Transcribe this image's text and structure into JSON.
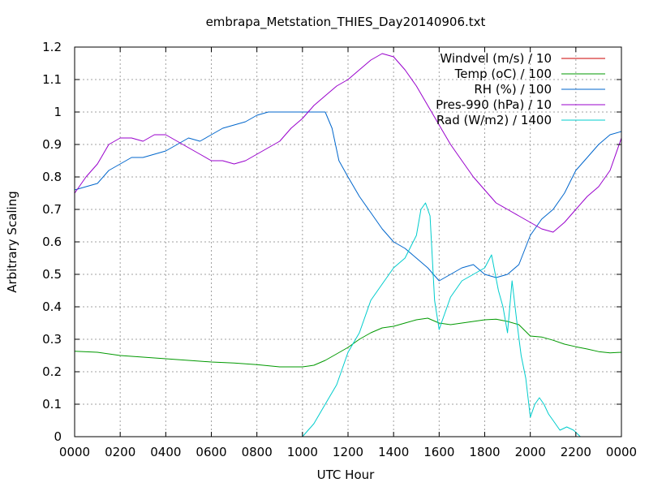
{
  "chart_data": {
    "type": "line",
    "title": "embrapa_Metstation_THIES_Day20140906.txt",
    "xlabel": "UTC Hour",
    "ylabel": "Arbitrary Scaling",
    "xlim": [
      0,
      24
    ],
    "ylim": [
      0,
      1.2
    ],
    "grid": true,
    "legend_position": "top-right",
    "x_ticks": [
      {
        "value": 0,
        "label": "0000"
      },
      {
        "value": 2,
        "label": "0200"
      },
      {
        "value": 4,
        "label": "0400"
      },
      {
        "value": 6,
        "label": "0600"
      },
      {
        "value": 8,
        "label": "0800"
      },
      {
        "value": 10,
        "label": "1000"
      },
      {
        "value": 12,
        "label": "1200"
      },
      {
        "value": 14,
        "label": "1400"
      },
      {
        "value": 16,
        "label": "1600"
      },
      {
        "value": 18,
        "label": "1800"
      },
      {
        "value": 20,
        "label": "2000"
      },
      {
        "value": 22,
        "label": "2200"
      },
      {
        "value": 24,
        "label": "0000"
      }
    ],
    "y_ticks": [
      {
        "value": 0,
        "label": "0"
      },
      {
        "value": 0.1,
        "label": "0.1"
      },
      {
        "value": 0.2,
        "label": "0.2"
      },
      {
        "value": 0.3,
        "label": "0.3"
      },
      {
        "value": 0.4,
        "label": "0.4"
      },
      {
        "value": 0.5,
        "label": "0.5"
      },
      {
        "value": 0.6,
        "label": "0.6"
      },
      {
        "value": 0.7,
        "label": "0.7"
      },
      {
        "value": 0.8,
        "label": "0.8"
      },
      {
        "value": 0.9,
        "label": "0.9"
      },
      {
        "value": 1.0,
        "label": "1"
      },
      {
        "value": 1.1,
        "label": "1.1"
      },
      {
        "value": 1.2,
        "label": "1.2"
      }
    ],
    "series": [
      {
        "name": "Windvel (m/s) / 10",
        "color": "#cc0000",
        "x": [],
        "y": []
      },
      {
        "name": "Temp (oC) / 100",
        "color": "#009900",
        "x": [
          0,
          1,
          2,
          3,
          4,
          5,
          6,
          7,
          8,
          9,
          10,
          10.5,
          11,
          11.5,
          12,
          12.5,
          13,
          13.5,
          14,
          14.5,
          15,
          15.5,
          16,
          16.5,
          17,
          17.5,
          18,
          18.5,
          19,
          19.5,
          20,
          20.5,
          21,
          21.5,
          22,
          22.5,
          23,
          23.5,
          24
        ],
        "y": [
          0.263,
          0.26,
          0.25,
          0.245,
          0.24,
          0.235,
          0.23,
          0.227,
          0.222,
          0.215,
          0.215,
          0.22,
          0.235,
          0.255,
          0.275,
          0.3,
          0.32,
          0.335,
          0.34,
          0.35,
          0.36,
          0.365,
          0.35,
          0.345,
          0.35,
          0.355,
          0.36,
          0.362,
          0.355,
          0.345,
          0.31,
          0.307,
          0.297,
          0.285,
          0.277,
          0.27,
          0.262,
          0.258,
          0.26
        ]
      },
      {
        "name": "RH (%) / 100",
        "color": "#0066cc",
        "x": [
          0,
          0.5,
          1,
          1.5,
          2,
          2.5,
          3,
          3.5,
          4,
          4.5,
          5,
          5.5,
          6,
          6.5,
          7,
          7.5,
          8,
          8.5,
          9,
          9.5,
          10,
          10.5,
          11,
          11.3,
          11.6,
          12,
          12.5,
          13,
          13.5,
          14,
          14.5,
          15,
          15.5,
          16,
          16.5,
          17,
          17.5,
          18,
          18.5,
          19,
          19.5,
          20,
          20.5,
          21,
          21.5,
          22,
          22.5,
          23,
          23.5,
          24
        ],
        "y": [
          0.76,
          0.77,
          0.78,
          0.82,
          0.84,
          0.86,
          0.86,
          0.87,
          0.88,
          0.9,
          0.92,
          0.91,
          0.93,
          0.95,
          0.96,
          0.97,
          0.99,
          1.0,
          1.0,
          1.0,
          1.0,
          1.0,
          1.0,
          0.95,
          0.85,
          0.8,
          0.74,
          0.69,
          0.64,
          0.6,
          0.58,
          0.55,
          0.52,
          0.48,
          0.5,
          0.52,
          0.53,
          0.5,
          0.49,
          0.5,
          0.53,
          0.62,
          0.67,
          0.7,
          0.75,
          0.82,
          0.86,
          0.9,
          0.93,
          0.94
        ]
      },
      {
        "name": "Pres-990 (hPa) / 10",
        "color": "#9900cc",
        "x": [
          0,
          0.5,
          1,
          1.5,
          2,
          2.5,
          3,
          3.5,
          4,
          4.5,
          5,
          5.5,
          6,
          6.5,
          7,
          7.5,
          8,
          8.5,
          9,
          9.5,
          10,
          10.5,
          11,
          11.5,
          12,
          12.5,
          13,
          13.5,
          14,
          14.5,
          15,
          15.5,
          16,
          16.5,
          17,
          17.5,
          18,
          18.5,
          19,
          19.5,
          20,
          20.5,
          21,
          21.5,
          22,
          22.5,
          23,
          23.5,
          24
        ],
        "y": [
          0.75,
          0.8,
          0.84,
          0.9,
          0.92,
          0.92,
          0.91,
          0.93,
          0.93,
          0.91,
          0.89,
          0.87,
          0.85,
          0.85,
          0.84,
          0.85,
          0.87,
          0.89,
          0.91,
          0.95,
          0.98,
          1.02,
          1.05,
          1.08,
          1.1,
          1.13,
          1.16,
          1.18,
          1.17,
          1.13,
          1.08,
          1.02,
          0.96,
          0.9,
          0.85,
          0.8,
          0.76,
          0.72,
          0.7,
          0.68,
          0.66,
          0.64,
          0.63,
          0.66,
          0.7,
          0.74,
          0.77,
          0.82,
          0.92
        ]
      },
      {
        "name": "Rad (W/m2) / 1400",
        "color": "#00cccc",
        "x": [
          10,
          10.5,
          11,
          11.5,
          12,
          12.5,
          13,
          13.5,
          14,
          14.5,
          15,
          15.2,
          15.4,
          15.6,
          15.8,
          16,
          16.2,
          16.5,
          17,
          17.5,
          18,
          18.3,
          18.6,
          18.8,
          19,
          19.2,
          19.4,
          19.6,
          19.8,
          20,
          20.2,
          20.4,
          20.6,
          20.8,
          21,
          21.3,
          21.6,
          21.9,
          22.2
        ],
        "y": [
          0.0,
          0.04,
          0.1,
          0.16,
          0.26,
          0.32,
          0.42,
          0.47,
          0.52,
          0.55,
          0.62,
          0.7,
          0.72,
          0.68,
          0.42,
          0.33,
          0.37,
          0.43,
          0.48,
          0.5,
          0.52,
          0.56,
          0.45,
          0.4,
          0.32,
          0.48,
          0.36,
          0.25,
          0.18,
          0.06,
          0.1,
          0.12,
          0.1,
          0.07,
          0.05,
          0.02,
          0.03,
          0.02,
          0.0
        ]
      }
    ]
  }
}
